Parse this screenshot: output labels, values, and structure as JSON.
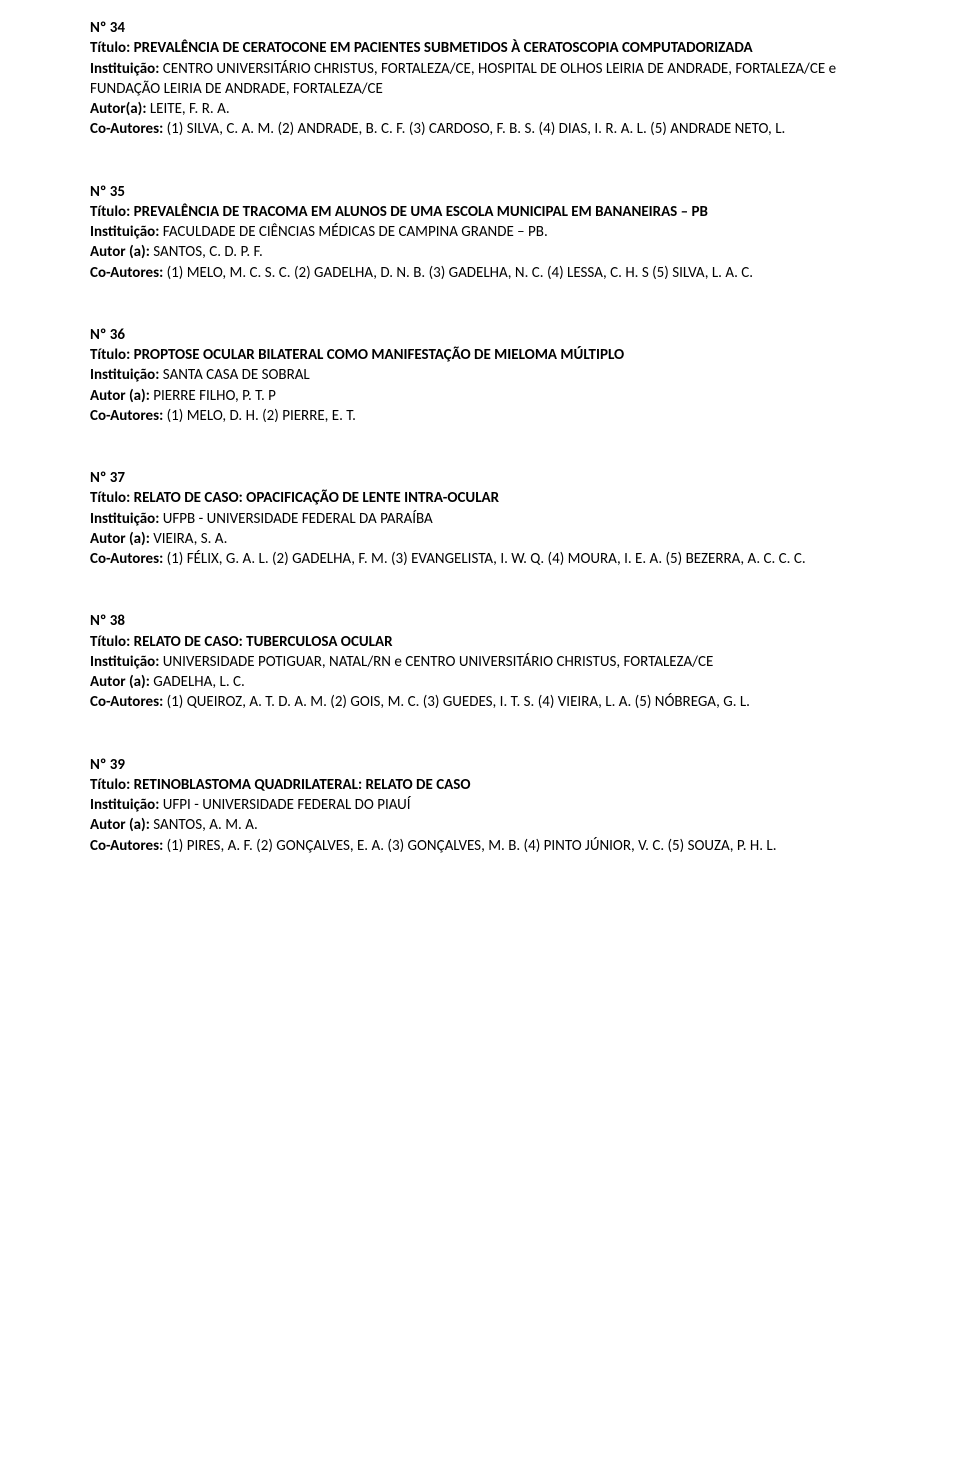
{
  "labels": {
    "numero": "Nº ",
    "titulo": "Título: ",
    "instituicao": "Instituição: ",
    "autor_a_colon": "Autor (a): ",
    "autor_a_paren": "Autor(a): ",
    "coautores": "Co-Autores: "
  },
  "entries": [
    {
      "num": "34",
      "titulo": "PREVALÊNCIA DE CERATOCONE EM PACIENTES SUBMETIDOS À CERATOSCOPIA COMPUTADORIZADA",
      "instituicao": "CENTRO UNIVERSITÁRIO CHRISTUS, FORTALEZA/CE,  HOSPITAL DE OLHOS LEIRIA DE ANDRADE, FORTALEZA/CE e FUNDAÇÃO LEIRIA DE ANDRADE, FORTALEZA/CE",
      "autor_label_key": "autor_a_paren",
      "autor": " LEITE, F. R. A.",
      "coautores": "(1) SILVA, C. A. M. (2) ANDRADE, B. C. F. (3) CARDOSO, F. B. S. (4) DIAS, I. R. A. L. (5) ANDRADE NETO, L."
    },
    {
      "num": "35",
      "titulo": "PREVALÊNCIA DE TRACOMA EM ALUNOS DE UMA ESCOLA MUNICIPAL EM BANANEIRAS – PB",
      "instituicao": "FACULDADE DE CIÊNCIAS MÉDICAS DE CAMPINA GRANDE – PB.",
      "autor_label_key": "autor_a_colon",
      "autor": "SANTOS, C. D. P. F.",
      "coautores": "(1) MELO, M. C. S. C. (2) GADELHA, D. N. B. (3) GADELHA, N. C. (4) LESSA, C. H. S (5) SILVA, L. A. C."
    },
    {
      "num": "36",
      "titulo": "PROPTOSE OCULAR BILATERAL COMO MANIFESTAÇÃO DE MIELOMA MÚLTIPLO",
      "instituicao": "SANTA CASA DE SOBRAL",
      "autor_label_key": "autor_a_colon",
      "autor": "PIERRE FILHO, P. T. P",
      "coautores": "(1) MELO, D. H. (2) PIERRE, E. T."
    },
    {
      "num": "37",
      "titulo": "RELATO DE CASO: OPACIFICAÇÃO DE LENTE INTRA-OCULAR",
      "instituicao": "UFPB - UNIVERSIDADE FEDERAL DA PARAÍBA",
      "autor_label_key": "autor_a_colon",
      "autor": "VIEIRA, S. A.",
      "coautores": "(1) FÉLIX, G. A. L. (2) GADELHA, F. M. (3) EVANGELISTA, I. W. Q. (4) MOURA, I. E. A. (5) BEZERRA, A. C. C. C."
    },
    {
      "num": "38",
      "titulo": "RELATO DE CASO: TUBERCULOSA OCULAR",
      "instituicao": "UNIVERSIDADE POTIGUAR, NATAL/RN e CENTRO UNIVERSITÁRIO CHRISTUS, FORTALEZA/CE",
      "autor_label_key": "autor_a_colon",
      "autor": "GADELHA, L. C.",
      "coautores": "(1) QUEIROZ, A. T. D. A. M. (2) GOIS, M. C. (3) GUEDES, I. T. S. (4) VIEIRA, L. A. (5) NÓBREGA, G. L."
    },
    {
      "num": "39",
      "titulo": "RETINOBLASTOMA QUADRILATERAL: RELATO DE CASO",
      "instituicao": "UFPI - UNIVERSIDADE FEDERAL DO PIAUÍ",
      "autor_label_key": "autor_a_colon",
      "autor": "SANTOS, A. M. A.",
      "coautores": "(1) PIRES, A. F. (2) GONÇALVES, E. A. (3) GONÇALVES, M. B. (4) PINTO JÚNIOR, V. C. (5) SOUZA, P. H. L."
    }
  ]
}
